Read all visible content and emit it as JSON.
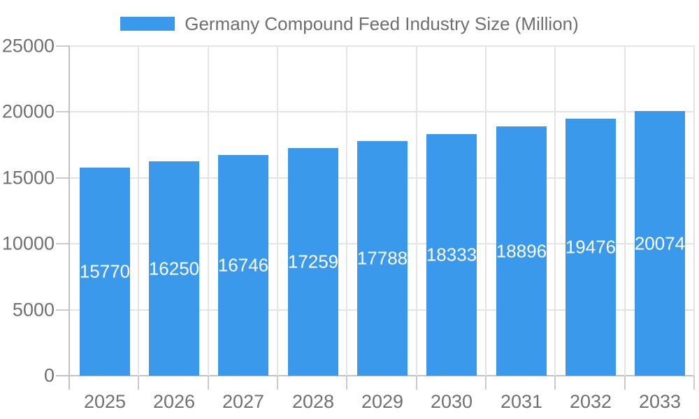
{
  "chart_data": {
    "type": "bar",
    "title": "Germany Compound Feed Industry Size (Million)",
    "categories": [
      "2025",
      "2026",
      "2027",
      "2028",
      "2029",
      "2030",
      "2031",
      "2032",
      "2033"
    ],
    "values": [
      15770,
      16250,
      16746,
      17259,
      17788,
      18333,
      18896,
      19476,
      20074
    ],
    "series_name": "Germany Compound Feed Industry Size (Million)",
    "xlabel": "",
    "ylabel": "",
    "ylim": [
      0,
      25000
    ],
    "ytick_step": 5000,
    "ytick_labels": [
      "0",
      "5000",
      "10000",
      "15000",
      "20000",
      "25000"
    ],
    "grid": true,
    "legend_position": "top",
    "bar_value_labels": "inside-center"
  },
  "colors": {
    "bar": "#3b99ec",
    "bar_label_text": "#ffffff",
    "grid_line": "#e4e4e4",
    "axis_line": "#c2c2c2",
    "tick_mark": "#cbcbcb",
    "tick_text": "#707070",
    "legend_text": "#6e6e6e",
    "background": "#ffffff"
  }
}
